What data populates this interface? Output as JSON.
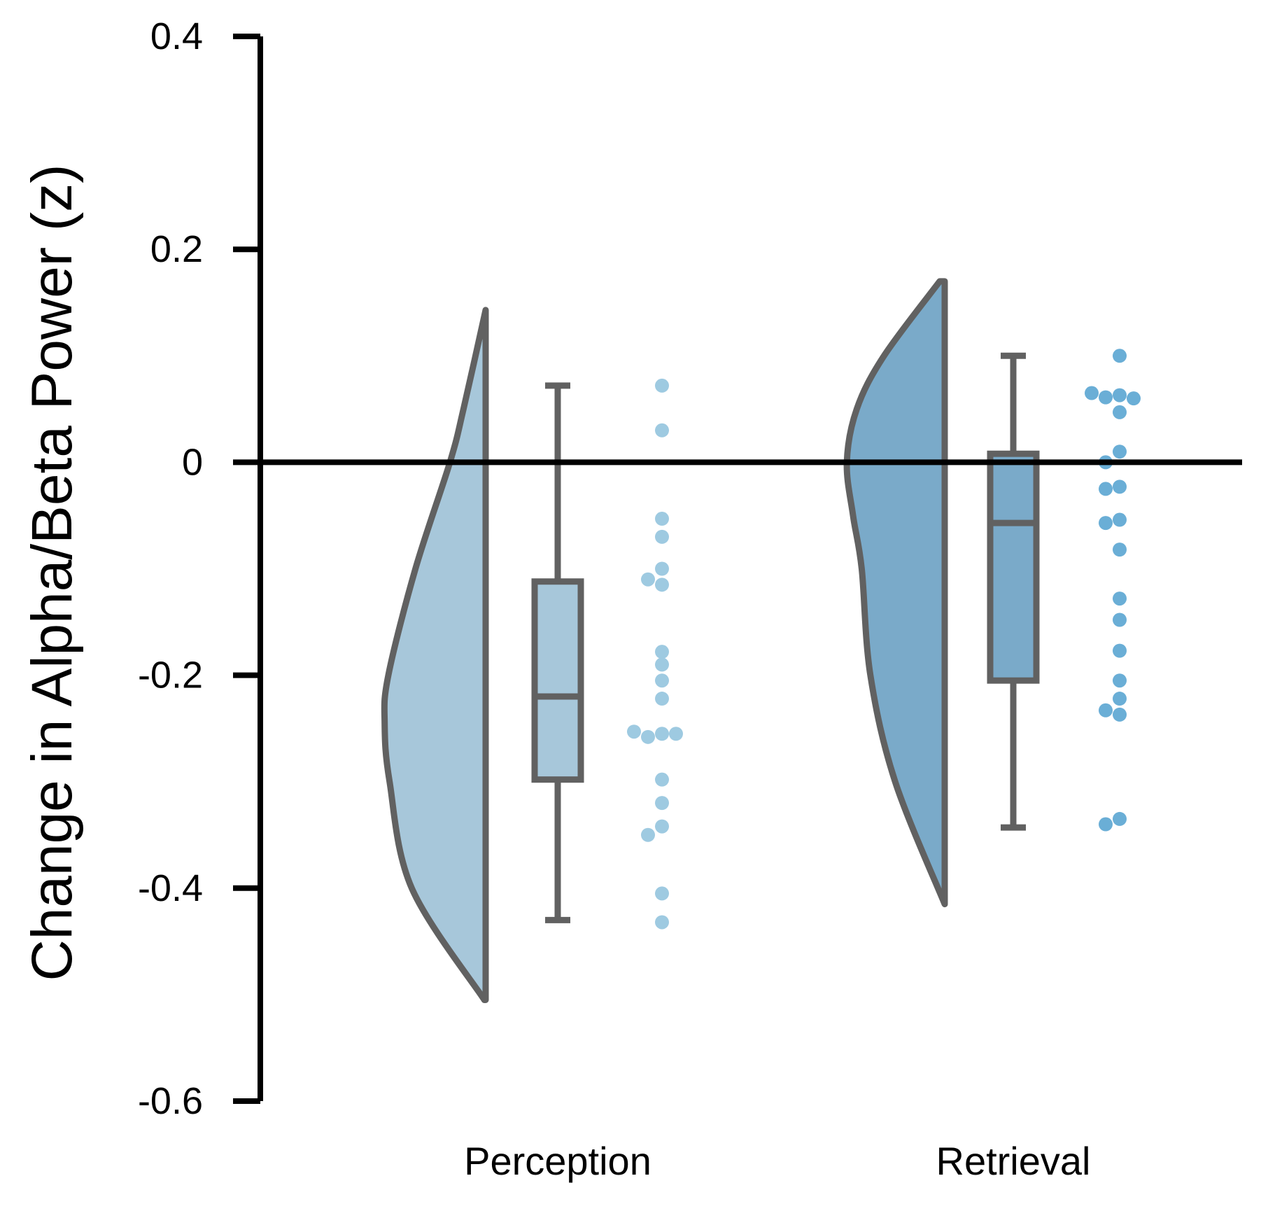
{
  "chart_data": {
    "type": "raincloud",
    "ylabel": "Change in Alpha/Beta Power (z)",
    "ylim": [
      -0.6,
      0.4
    ],
    "yticks": [
      0.4,
      0.2,
      0,
      -0.2,
      -0.4,
      -0.6
    ],
    "ytick_labels": [
      "0.4",
      "0.2",
      "0",
      "-0.2",
      "-0.4",
      "-0.6"
    ],
    "reference_line": 0,
    "categories": [
      "Perception",
      "Retrieval"
    ],
    "colors": {
      "Perception": "#a7c7da",
      "Retrieval": "#7aaac9",
      "outline": "#616161",
      "Perception_points": "#9ecae1",
      "Retrieval_points": "#6aaed6"
    },
    "series": [
      {
        "category": "Perception",
        "density": {
          "y_range": [
            -0.505,
            0.143
          ],
          "profile": [
            [
              0.143,
              0.0
            ],
            [
              0.05,
              0.18
            ],
            [
              0.0,
              0.29
            ],
            [
              -0.1,
              0.57
            ],
            [
              -0.2,
              0.79
            ],
            [
              -0.245,
              0.82
            ],
            [
              -0.3,
              0.78
            ],
            [
              -0.4,
              0.6
            ],
            [
              -0.505,
              0.01
            ]
          ]
        },
        "box": {
          "whisker_low": -0.43,
          "q1": -0.298,
          "median": -0.22,
          "q3": -0.112,
          "whisker_high": 0.072
        },
        "points": [
          0.072,
          0.03,
          -0.053,
          -0.07,
          -0.1,
          -0.11,
          -0.115,
          -0.178,
          -0.19,
          -0.205,
          -0.222,
          -0.255,
          -0.258,
          -0.255,
          -0.253,
          -0.298,
          -0.32,
          -0.342,
          -0.35,
          -0.405,
          -0.432
        ]
      },
      {
        "category": "Retrieval",
        "density": {
          "y_range": [
            -0.415,
            0.17
          ],
          "profile": [
            [
              0.17,
              0.04
            ],
            [
              0.1,
              0.49
            ],
            [
              0.05,
              0.71
            ],
            [
              0.0,
              0.79
            ],
            [
              -0.05,
              0.74
            ],
            [
              -0.1,
              0.67
            ],
            [
              -0.2,
              0.6
            ],
            [
              -0.3,
              0.4
            ],
            [
              -0.415,
              0.0
            ]
          ]
        },
        "box": {
          "whisker_low": -0.343,
          "q1": -0.205,
          "median": -0.057,
          "q3": 0.008,
          "whisker_high": 0.1
        },
        "points": [
          0.1,
          0.063,
          0.061,
          0.06,
          0.065,
          0.047,
          0.01,
          0.0,
          -0.023,
          -0.025,
          -0.054,
          -0.057,
          -0.082,
          -0.128,
          -0.148,
          -0.177,
          -0.205,
          -0.222,
          -0.233,
          -0.237,
          -0.335,
          -0.34
        ]
      }
    ]
  }
}
